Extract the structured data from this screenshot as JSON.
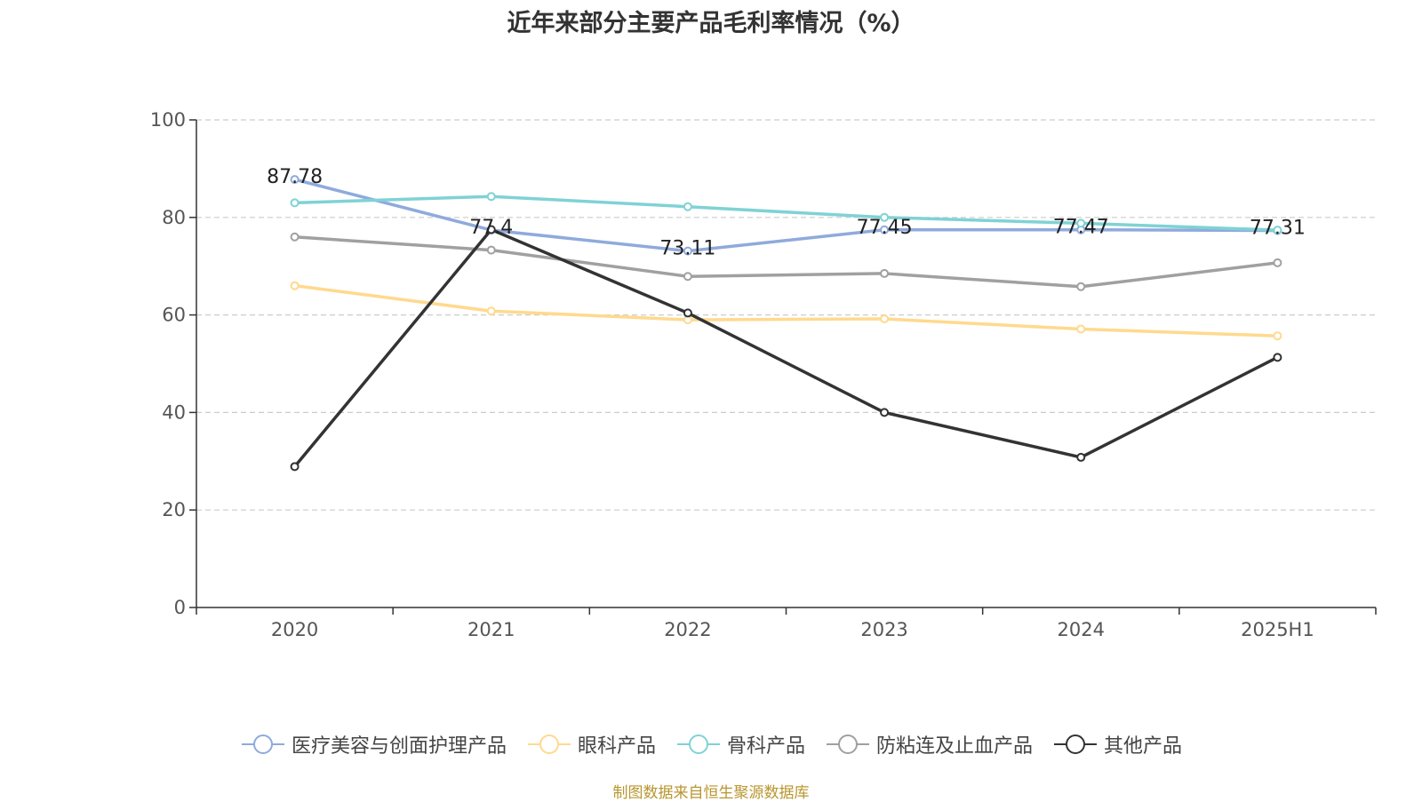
{
  "title": "近年来部分主要产品毛利率情况（%）",
  "source": "制图数据来自恒生聚源数据库",
  "chart_data": {
    "type": "line",
    "title": "近年来部分主要产品毛利率情况（%）",
    "categories": [
      "2020",
      "2021",
      "2022",
      "2023",
      "2024",
      "2025H1"
    ],
    "ylim": [
      0,
      100
    ],
    "yticks": [
      0,
      20,
      40,
      60,
      80,
      100
    ],
    "grid": true,
    "legend_position": "bottom",
    "series": [
      {
        "name": "医疗美容与创面护理产品",
        "color": "#8faadc",
        "values": [
          87.78,
          77.4,
          73.11,
          77.45,
          77.47,
          77.31
        ],
        "labels": [
          "87.78",
          "77.4",
          "73.11",
          "77.45",
          "77.47",
          "77.31"
        ]
      },
      {
        "name": "眼科产品",
        "color": "#ffd98e",
        "values": [
          66.0,
          60.8,
          59.0,
          59.2,
          57.1,
          55.7
        ]
      },
      {
        "name": "骨科产品",
        "color": "#7fd2d5",
        "values": [
          83.0,
          84.3,
          82.2,
          80.0,
          78.8,
          77.4
        ]
      },
      {
        "name": "防粘连及止血产品",
        "color": "#a0a0a0",
        "values": [
          76.0,
          73.3,
          67.9,
          68.5,
          65.8,
          70.7
        ]
      },
      {
        "name": "其他产品",
        "color": "#333333",
        "values": [
          28.9,
          77.5,
          60.4,
          40.0,
          30.8,
          51.3
        ]
      }
    ]
  }
}
